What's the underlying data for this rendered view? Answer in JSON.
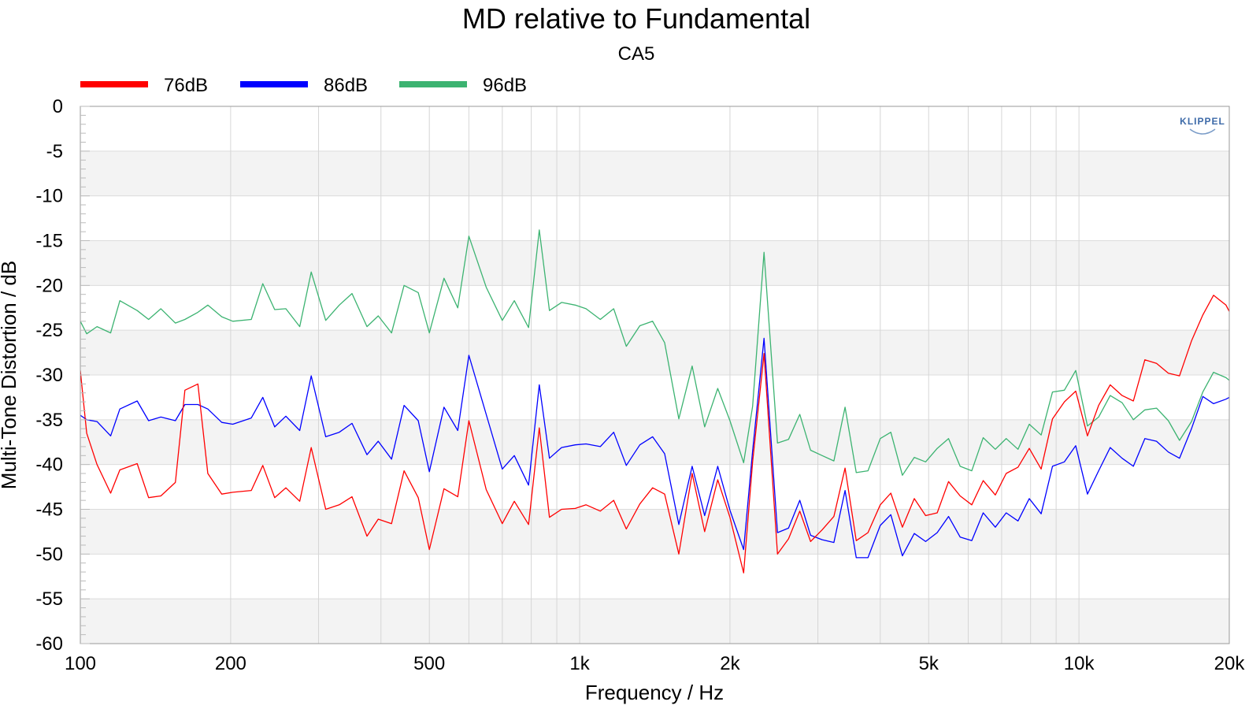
{
  "chart_data": {
    "type": "line",
    "title": "MD relative to Fundamental",
    "subtitle": "CA5",
    "xlabel": "Frequency / Hz",
    "ylabel": "Multi-Tone Distortion / dB",
    "xscale": "log",
    "xlim": [
      100,
      20000
    ],
    "ylim": [
      -60,
      0
    ],
    "x_ticks": [
      {
        "value": 100,
        "label": "100"
      },
      {
        "value": 200,
        "label": "200"
      },
      {
        "value": 500,
        "label": "500"
      },
      {
        "value": 1000,
        "label": "1k"
      },
      {
        "value": 2000,
        "label": "2k"
      },
      {
        "value": 5000,
        "label": "5k"
      },
      {
        "value": 10000,
        "label": "10k"
      },
      {
        "value": 20000,
        "label": "20k"
      }
    ],
    "y_ticks": [
      0,
      -5,
      -10,
      -15,
      -20,
      -25,
      -30,
      -35,
      -40,
      -45,
      -50,
      -55,
      -60
    ],
    "grid": true,
    "legend_position": "top-left",
    "logo_text": "KLIPPEL",
    "series": [
      {
        "name": "76dB",
        "color": "#ff0000",
        "points": [
          [
            100,
            -29.5
          ],
          [
            103,
            -36.5
          ],
          [
            108,
            -40.0
          ],
          [
            115,
            -43.2
          ],
          [
            120,
            -40.6
          ],
          [
            130,
            -39.9
          ],
          [
            137,
            -43.7
          ],
          [
            145,
            -43.5
          ],
          [
            155,
            -42.0
          ],
          [
            162,
            -31.7
          ],
          [
            172,
            -31.0
          ],
          [
            180,
            -41.0
          ],
          [
            192,
            -43.3
          ],
          [
            202,
            -43.1
          ],
          [
            220,
            -42.9
          ],
          [
            232,
            -40.1
          ],
          [
            245,
            -43.7
          ],
          [
            258,
            -42.6
          ],
          [
            275,
            -44.1
          ],
          [
            290,
            -38.1
          ],
          [
            310,
            -45.0
          ],
          [
            330,
            -44.5
          ],
          [
            350,
            -43.6
          ],
          [
            375,
            -48.0
          ],
          [
            395,
            -46.1
          ],
          [
            420,
            -46.6
          ],
          [
            445,
            -40.7
          ],
          [
            475,
            -43.7
          ],
          [
            500,
            -49.5
          ],
          [
            535,
            -42.7
          ],
          [
            570,
            -43.6
          ],
          [
            600,
            -35.1
          ],
          [
            650,
            -42.8
          ],
          [
            700,
            -46.6
          ],
          [
            740,
            -44.1
          ],
          [
            790,
            -46.7
          ],
          [
            830,
            -35.9
          ],
          [
            870,
            -45.9
          ],
          [
            920,
            -45.0
          ],
          [
            980,
            -44.9
          ],
          [
            1030,
            -44.5
          ],
          [
            1100,
            -45.2
          ],
          [
            1170,
            -44.0
          ],
          [
            1240,
            -47.2
          ],
          [
            1320,
            -44.4
          ],
          [
            1400,
            -42.6
          ],
          [
            1480,
            -43.3
          ],
          [
            1580,
            -50.0
          ],
          [
            1680,
            -41.0
          ],
          [
            1780,
            -47.5
          ],
          [
            1890,
            -41.7
          ],
          [
            2000,
            -45.9
          ],
          [
            2130,
            -52.1
          ],
          [
            2220,
            -39.7
          ],
          [
            2340,
            -27.6
          ],
          [
            2490,
            -50.0
          ],
          [
            2620,
            -48.3
          ],
          [
            2760,
            -45.2
          ],
          [
            2900,
            -48.6
          ],
          [
            3060,
            -47.3
          ],
          [
            3230,
            -45.8
          ],
          [
            3400,
            -40.4
          ],
          [
            3580,
            -48.5
          ],
          [
            3780,
            -47.6
          ],
          [
            4000,
            -44.5
          ],
          [
            4200,
            -43.2
          ],
          [
            4430,
            -47.0
          ],
          [
            4680,
            -43.8
          ],
          [
            4930,
            -45.7
          ],
          [
            5200,
            -45.4
          ],
          [
            5480,
            -41.9
          ],
          [
            5780,
            -43.5
          ],
          [
            6100,
            -44.5
          ],
          [
            6430,
            -41.8
          ],
          [
            6800,
            -43.4
          ],
          [
            7150,
            -41.0
          ],
          [
            7550,
            -40.3
          ],
          [
            7950,
            -38.2
          ],
          [
            8400,
            -40.5
          ],
          [
            8850,
            -34.9
          ],
          [
            9350,
            -33.0
          ],
          [
            9850,
            -31.8
          ],
          [
            10400,
            -36.8
          ],
          [
            10950,
            -33.4
          ],
          [
            11550,
            -31.1
          ],
          [
            12200,
            -32.3
          ],
          [
            12850,
            -32.9
          ],
          [
            13550,
            -28.3
          ],
          [
            14300,
            -28.7
          ],
          [
            15100,
            -29.8
          ],
          [
            15900,
            -30.1
          ],
          [
            16800,
            -26.2
          ],
          [
            17700,
            -23.3
          ],
          [
            18600,
            -21.1
          ],
          [
            19700,
            -22.2
          ],
          [
            20000,
            -22.9
          ]
        ]
      },
      {
        "name": "86dB",
        "color": "#0000ff",
        "points": [
          [
            100,
            -34.5
          ],
          [
            103,
            -35.0
          ],
          [
            108,
            -35.2
          ],
          [
            115,
            -36.8
          ],
          [
            120,
            -33.8
          ],
          [
            130,
            -32.9
          ],
          [
            137,
            -35.1
          ],
          [
            145,
            -34.7
          ],
          [
            155,
            -35.1
          ],
          [
            162,
            -33.3
          ],
          [
            172,
            -33.3
          ],
          [
            180,
            -33.8
          ],
          [
            192,
            -35.3
          ],
          [
            202,
            -35.5
          ],
          [
            220,
            -34.8
          ],
          [
            232,
            -32.5
          ],
          [
            245,
            -35.8
          ],
          [
            258,
            -34.6
          ],
          [
            275,
            -36.2
          ],
          [
            290,
            -30.1
          ],
          [
            310,
            -36.9
          ],
          [
            330,
            -36.4
          ],
          [
            350,
            -35.4
          ],
          [
            375,
            -38.9
          ],
          [
            395,
            -37.4
          ],
          [
            420,
            -39.4
          ],
          [
            445,
            -33.4
          ],
          [
            475,
            -35.1
          ],
          [
            500,
            -40.8
          ],
          [
            535,
            -33.6
          ],
          [
            570,
            -36.2
          ],
          [
            600,
            -27.8
          ],
          [
            650,
            -34.4
          ],
          [
            700,
            -40.5
          ],
          [
            740,
            -39.0
          ],
          [
            790,
            -42.3
          ],
          [
            830,
            -31.1
          ],
          [
            870,
            -39.3
          ],
          [
            920,
            -38.1
          ],
          [
            980,
            -37.8
          ],
          [
            1030,
            -37.7
          ],
          [
            1100,
            -38.0
          ],
          [
            1170,
            -36.4
          ],
          [
            1240,
            -40.1
          ],
          [
            1320,
            -37.8
          ],
          [
            1400,
            -36.9
          ],
          [
            1480,
            -38.8
          ],
          [
            1580,
            -46.7
          ],
          [
            1680,
            -40.2
          ],
          [
            1780,
            -45.7
          ],
          [
            1890,
            -40.2
          ],
          [
            2000,
            -45.1
          ],
          [
            2130,
            -49.5
          ],
          [
            2220,
            -38.5
          ],
          [
            2340,
            -25.9
          ],
          [
            2490,
            -47.6
          ],
          [
            2620,
            -47.1
          ],
          [
            2760,
            -44.0
          ],
          [
            2900,
            -47.9
          ],
          [
            3060,
            -48.4
          ],
          [
            3230,
            -48.7
          ],
          [
            3400,
            -42.9
          ],
          [
            3580,
            -50.4
          ],
          [
            3780,
            -50.4
          ],
          [
            4000,
            -46.8
          ],
          [
            4200,
            -45.6
          ],
          [
            4430,
            -50.2
          ],
          [
            4680,
            -47.7
          ],
          [
            4930,
            -48.6
          ],
          [
            5200,
            -47.6
          ],
          [
            5480,
            -45.8
          ],
          [
            5780,
            -48.1
          ],
          [
            6100,
            -48.5
          ],
          [
            6430,
            -45.4
          ],
          [
            6800,
            -47.0
          ],
          [
            7150,
            -45.4
          ],
          [
            7550,
            -46.3
          ],
          [
            7950,
            -43.8
          ],
          [
            8400,
            -45.5
          ],
          [
            8850,
            -40.2
          ],
          [
            9350,
            -39.7
          ],
          [
            9850,
            -37.9
          ],
          [
            10400,
            -43.3
          ],
          [
            10950,
            -40.7
          ],
          [
            11550,
            -38.1
          ],
          [
            12200,
            -39.3
          ],
          [
            12850,
            -40.2
          ],
          [
            13550,
            -37.1
          ],
          [
            14300,
            -37.4
          ],
          [
            15100,
            -38.6
          ],
          [
            15900,
            -39.3
          ],
          [
            16800,
            -36.0
          ],
          [
            17700,
            -32.4
          ],
          [
            18600,
            -33.2
          ],
          [
            19700,
            -32.7
          ],
          [
            20000,
            -32.5
          ]
        ]
      },
      {
        "name": "96dB",
        "color": "#3cb371",
        "points": [
          [
            100,
            -24.0
          ],
          [
            103,
            -25.4
          ],
          [
            108,
            -24.6
          ],
          [
            115,
            -25.3
          ],
          [
            120,
            -21.7
          ],
          [
            130,
            -22.8
          ],
          [
            137,
            -23.8
          ],
          [
            145,
            -22.6
          ],
          [
            155,
            -24.2
          ],
          [
            162,
            -23.8
          ],
          [
            172,
            -23.0
          ],
          [
            180,
            -22.2
          ],
          [
            192,
            -23.5
          ],
          [
            202,
            -24.0
          ],
          [
            220,
            -23.8
          ],
          [
            232,
            -19.8
          ],
          [
            245,
            -22.7
          ],
          [
            258,
            -22.6
          ],
          [
            275,
            -24.6
          ],
          [
            290,
            -18.5
          ],
          [
            310,
            -23.9
          ],
          [
            330,
            -22.2
          ],
          [
            350,
            -20.9
          ],
          [
            375,
            -24.6
          ],
          [
            395,
            -23.4
          ],
          [
            420,
            -25.3
          ],
          [
            445,
            -20.0
          ],
          [
            475,
            -20.8
          ],
          [
            500,
            -25.3
          ],
          [
            535,
            -19.2
          ],
          [
            570,
            -22.5
          ],
          [
            600,
            -14.5
          ],
          [
            650,
            -20.2
          ],
          [
            700,
            -23.9
          ],
          [
            740,
            -21.7
          ],
          [
            790,
            -24.7
          ],
          [
            830,
            -13.8
          ],
          [
            870,
            -22.8
          ],
          [
            920,
            -21.9
          ],
          [
            980,
            -22.2
          ],
          [
            1030,
            -22.6
          ],
          [
            1100,
            -23.8
          ],
          [
            1170,
            -22.6
          ],
          [
            1240,
            -26.8
          ],
          [
            1320,
            -24.5
          ],
          [
            1400,
            -24.0
          ],
          [
            1480,
            -26.4
          ],
          [
            1580,
            -34.9
          ],
          [
            1680,
            -29.0
          ],
          [
            1780,
            -35.8
          ],
          [
            1890,
            -31.5
          ],
          [
            2000,
            -35.1
          ],
          [
            2130,
            -39.8
          ],
          [
            2220,
            -33.5
          ],
          [
            2340,
            -16.3
          ],
          [
            2490,
            -37.6
          ],
          [
            2620,
            -37.2
          ],
          [
            2760,
            -34.4
          ],
          [
            2900,
            -38.4
          ],
          [
            3060,
            -39.0
          ],
          [
            3230,
            -39.6
          ],
          [
            3400,
            -33.6
          ],
          [
            3580,
            -40.9
          ],
          [
            3780,
            -40.7
          ],
          [
            4000,
            -37.1
          ],
          [
            4200,
            -36.4
          ],
          [
            4430,
            -41.2
          ],
          [
            4680,
            -39.2
          ],
          [
            4930,
            -39.7
          ],
          [
            5200,
            -38.2
          ],
          [
            5480,
            -37.1
          ],
          [
            5780,
            -40.2
          ],
          [
            6100,
            -40.7
          ],
          [
            6430,
            -37.0
          ],
          [
            6800,
            -38.3
          ],
          [
            7150,
            -37.1
          ],
          [
            7550,
            -38.3
          ],
          [
            7950,
            -35.5
          ],
          [
            8400,
            -36.7
          ],
          [
            8850,
            -31.9
          ],
          [
            9350,
            -31.7
          ],
          [
            9850,
            -29.5
          ],
          [
            10400,
            -35.7
          ],
          [
            10950,
            -34.7
          ],
          [
            11550,
            -32.3
          ],
          [
            12200,
            -33.1
          ],
          [
            12850,
            -35.0
          ],
          [
            13550,
            -33.9
          ],
          [
            14300,
            -33.7
          ],
          [
            15100,
            -35.1
          ],
          [
            15900,
            -37.3
          ],
          [
            16800,
            -35.2
          ],
          [
            17700,
            -31.9
          ],
          [
            18600,
            -29.7
          ],
          [
            19700,
            -30.3
          ],
          [
            20000,
            -30.6
          ]
        ]
      }
    ]
  }
}
